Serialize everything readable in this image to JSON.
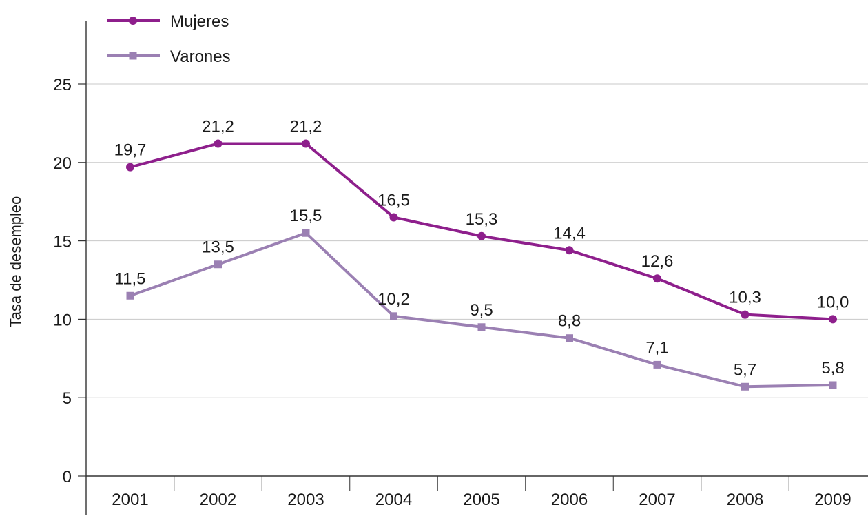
{
  "chart_data": {
    "type": "line",
    "title": "",
    "xlabel": "",
    "ylabel": "Tasa de desempleo",
    "categories": [
      "2001",
      "2002",
      "2003",
      "2004",
      "2005",
      "2006",
      "2007",
      "2008",
      "2009"
    ],
    "series": [
      {
        "name": "Mujeres",
        "values": [
          19.7,
          21.2,
          21.2,
          16.5,
          15.3,
          14.4,
          12.6,
          10.3,
          10.0
        ],
        "labels": [
          "19,7",
          "21,2",
          "21,2",
          "16,5",
          "15,3",
          "14,4",
          "12,6",
          "10,3",
          "10,0"
        ],
        "color": "#8e1f8c",
        "marker": "circle"
      },
      {
        "name": "Varones",
        "values": [
          11.5,
          13.5,
          15.5,
          10.2,
          9.5,
          8.8,
          7.1,
          5.7,
          5.8
        ],
        "labels": [
          "11,5",
          "13,5",
          "15,5",
          "10,2",
          "9,5",
          "8,8",
          "7,1",
          "5,7",
          "5,8"
        ],
        "color": "#9b80b3",
        "marker": "square"
      }
    ],
    "ylim": [
      0,
      25
    ],
    "yticks": [
      0,
      5,
      10,
      15,
      20,
      25
    ],
    "ytick_labels": [
      "0",
      "5",
      "10",
      "15",
      "20",
      "25"
    ],
    "grid": true,
    "legend_position": "top-left",
    "colors": {
      "grid": "#c8c8c8",
      "axis": "#333333"
    }
  }
}
